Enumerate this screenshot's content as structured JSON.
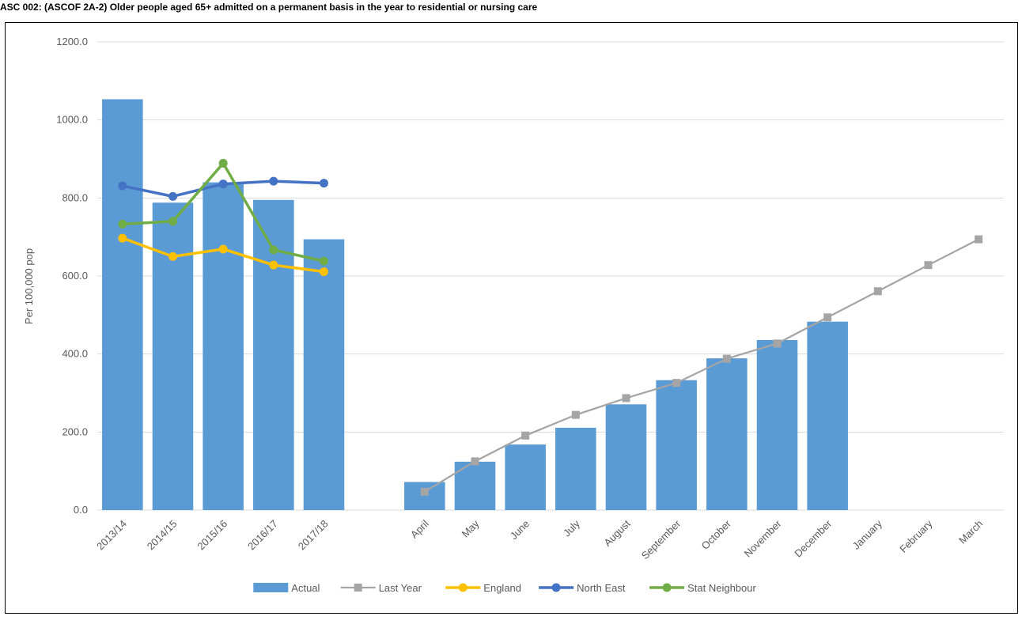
{
  "chart_data": {
    "type": "bar",
    "title": "ASC 002: (ASCOF 2A-2) Older  people aged 65+ admitted on a permanent basis in the year to residential or nursing care",
    "ylabel": "Per 100,000 pop",
    "xlabel": "",
    "ylim": [
      0,
      1200
    ],
    "y_ticks": [
      "0.0",
      "200.0",
      "400.0",
      "600.0",
      "800.0",
      "1000.0",
      "1200.0"
    ],
    "grid": true,
    "legend_position": "bottom",
    "categories": [
      "2013/14",
      "2014/15",
      "2015/16",
      "2016/17",
      "2017/18",
      "",
      "April",
      "May",
      "June",
      "July",
      "August",
      "September",
      "October",
      "November",
      "December",
      "January",
      "February",
      "March"
    ],
    "series": [
      {
        "name": "Actual",
        "type": "bar",
        "color": "#5b9bd5",
        "values": [
          1053,
          788,
          840,
          795,
          694,
          null,
          72,
          124,
          168,
          211,
          271,
          333,
          389,
          436,
          483,
          null,
          null,
          null
        ]
      },
      {
        "name": "Last Year",
        "type": "line",
        "marker": "square",
        "color": "#a5a5a5",
        "values": [
          null,
          null,
          null,
          null,
          null,
          null,
          47,
          125,
          191,
          244,
          287,
          326,
          388,
          427,
          494,
          561,
          628,
          694
        ]
      },
      {
        "name": "England",
        "type": "line",
        "marker": "circle",
        "color": "#ffc000",
        "values": [
          697,
          650,
          669,
          628,
          611,
          null,
          null,
          null,
          null,
          null,
          null,
          null,
          null,
          null,
          null,
          null,
          null,
          null
        ]
      },
      {
        "name": "North East",
        "type": "line",
        "marker": "circle",
        "color": "#4472c4",
        "values": [
          831,
          804,
          836,
          843,
          838,
          null,
          null,
          null,
          null,
          null,
          null,
          null,
          null,
          null,
          null,
          null,
          null,
          null
        ]
      },
      {
        "name": "Stat Neighbour",
        "type": "line",
        "marker": "circle",
        "color": "#70ad47",
        "values": [
          733,
          740,
          889,
          667,
          638,
          null,
          null,
          null,
          null,
          null,
          null,
          null,
          null,
          null,
          null,
          null,
          null,
          null
        ]
      }
    ]
  }
}
